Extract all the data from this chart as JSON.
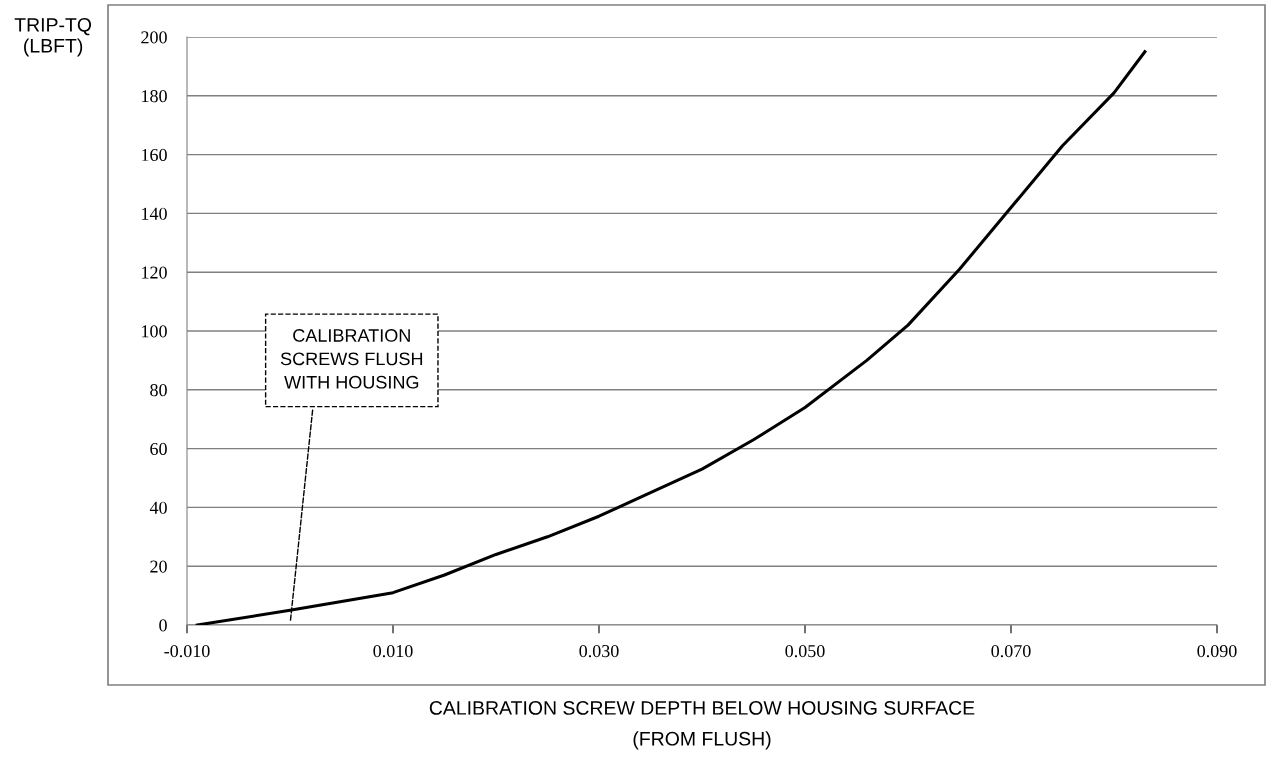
{
  "chart_data": {
    "type": "line",
    "xlabel": "CALIBRATION SCREW DEPTH BELOW HOUSING SURFACE\n(FROM FLUSH)",
    "ylabel": "TRIP-TQ\n(LBFT)",
    "series": [
      {
        "color": "#000000",
        "x": [
          -0.009,
          0.0,
          0.005,
          0.01,
          0.015,
          0.02,
          0.025,
          0.03,
          0.035,
          0.04,
          0.045,
          0.05,
          0.056,
          0.06,
          0.065,
          0.07,
          0.075,
          0.08,
          0.083
        ],
        "values": [
          0,
          5,
          8,
          11,
          17,
          24,
          30,
          37,
          45,
          53,
          63,
          74,
          90,
          102,
          121,
          142,
          163,
          181,
          195
        ]
      }
    ],
    "xlim": [
      -0.01,
      0.09
    ],
    "ylim": [
      0,
      200
    ],
    "xticks": [
      {
        "value": -0.01,
        "label": "-0.010"
      },
      {
        "value": 0.01,
        "label": "0.010"
      },
      {
        "value": 0.03,
        "label": "0.030"
      },
      {
        "value": 0.05,
        "label": "0.050"
      },
      {
        "value": 0.07,
        "label": "0.070"
      },
      {
        "value": 0.09,
        "label": "0.090"
      }
    ],
    "yticks": [
      0,
      20,
      40,
      60,
      80,
      100,
      120,
      140,
      160,
      180,
      200
    ],
    "grid": "y",
    "marker": "none",
    "line_style": "solid",
    "annotations": [
      "CALIBRATION\nSCREWS FLUSH\nWITH HOUSING"
    ]
  }
}
